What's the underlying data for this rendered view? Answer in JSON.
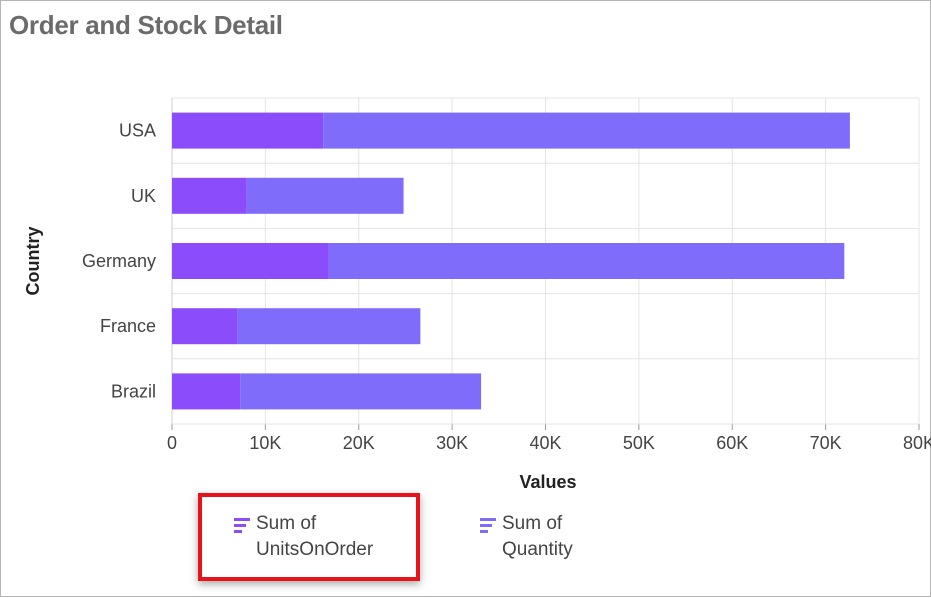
{
  "title": "Order and Stock Detail",
  "colors": {
    "units_on_order": "#8b4dfc",
    "quantity": "#7f6cfb",
    "grid": "#e4e4e4",
    "axis_text": "#444444",
    "highlight": "#e8131a"
  },
  "legend": {
    "items": [
      {
        "line1": "Sum of",
        "line2": "UnitsOnOrder",
        "icon": "bar-legend-icon"
      },
      {
        "line1": "Sum of",
        "line2": "Quantity",
        "icon": "bar-legend-icon"
      }
    ]
  },
  "chart_data": {
    "type": "bar",
    "orientation": "horizontal",
    "stacked": true,
    "categories": [
      "USA",
      "UK",
      "Germany",
      "France",
      "Brazil"
    ],
    "series": [
      {
        "name": "Sum of UnitsOnOrder",
        "values": [
          16200,
          8000,
          16800,
          7000,
          7300
        ]
      },
      {
        "name": "Sum of Quantity",
        "values": [
          56400,
          16800,
          55200,
          19600,
          25800
        ]
      }
    ],
    "xlabel": "Values",
    "ylabel": "Country",
    "xlim": [
      0,
      80000
    ],
    "xticks": [
      "0",
      "10K",
      "20K",
      "30K",
      "40K",
      "50K",
      "60K",
      "70K",
      "80K"
    ],
    "grid": true,
    "legend_position": "bottom"
  }
}
